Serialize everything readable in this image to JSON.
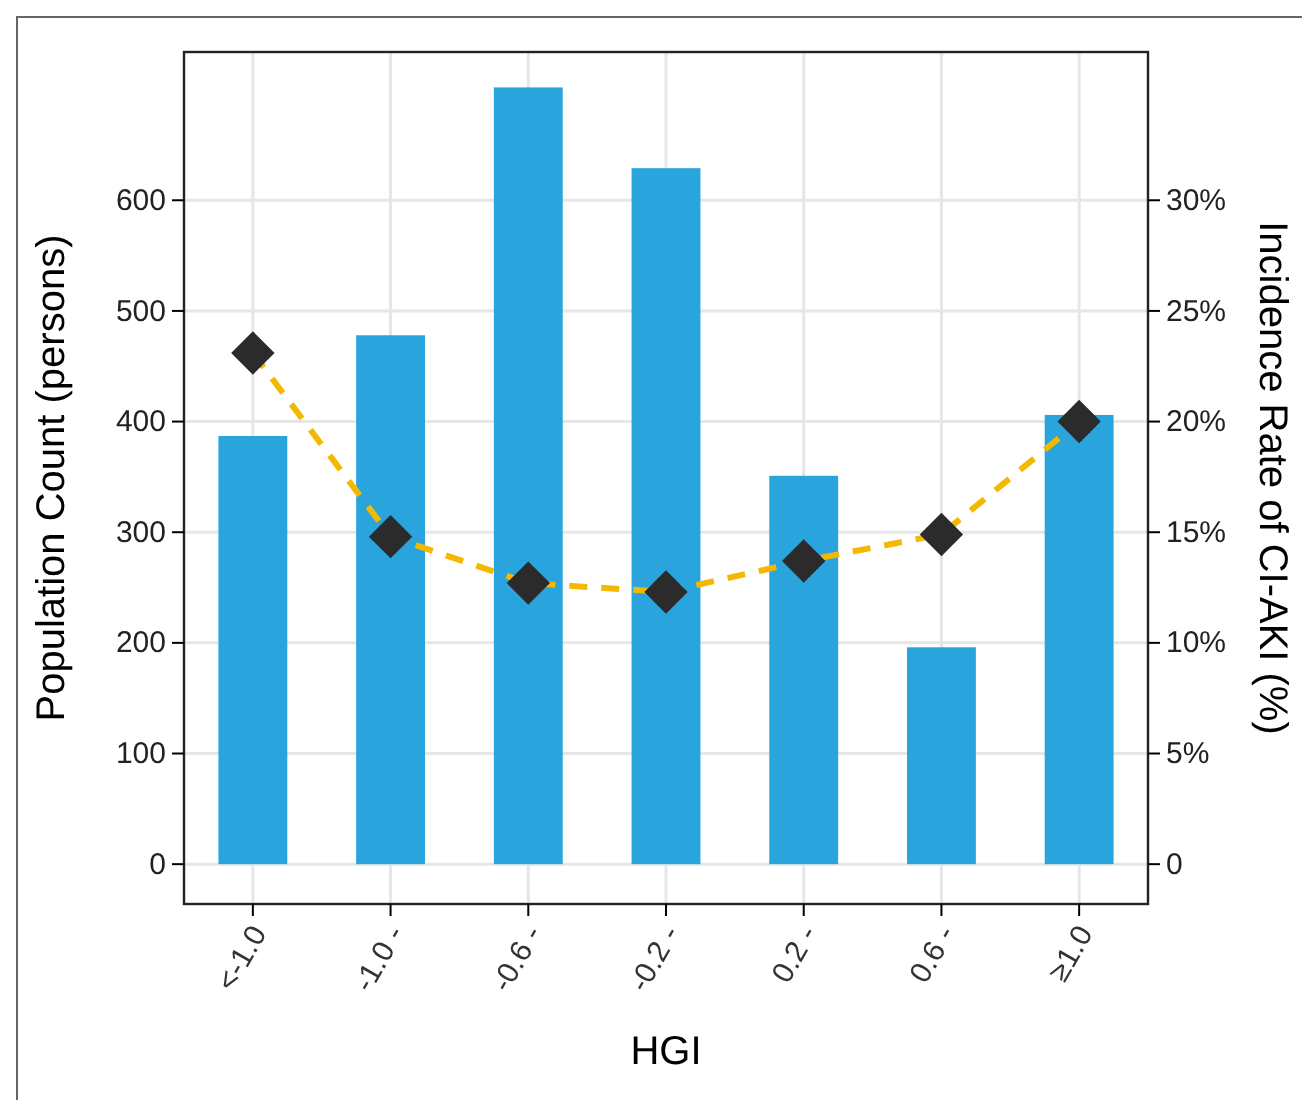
{
  "chart_data": {
    "type": "bar",
    "xlabel": "HGI",
    "ylabel": "Population Count (persons)",
    "y2label": "Incidence Rate of CI-AKI (%)",
    "categories": [
      "<-1.0",
      "-1.0 -",
      "-0.6 -",
      "-0.2 -",
      "0.2 -",
      "0.6 -",
      "≥1.0"
    ],
    "series": [
      {
        "color": "#2aa4dc",
        "values": [
          387,
          478,
          702,
          629,
          351,
          196,
          406
        ]
      },
      {
        "type": "line",
        "axis": "y2",
        "color": "#f5b800",
        "marker": "diamond",
        "line_style": "dashed",
        "values": [
          23.1,
          14.8,
          12.7,
          12.3,
          13.7,
          14.9,
          20.0
        ]
      }
    ],
    "ylim": [
      -36,
      734
    ],
    "yticks": [
      0,
      100,
      200,
      300,
      400,
      500,
      600
    ],
    "y2lim": [
      -1.8,
      36.7
    ],
    "y2ticks": [
      {
        "value": 0,
        "label": "0"
      },
      {
        "value": 5,
        "label": "5%"
      },
      {
        "value": 10,
        "label": "10%"
      },
      {
        "value": 15,
        "label": "15%"
      },
      {
        "value": 20,
        "label": "20%"
      },
      {
        "value": 25,
        "label": "25%"
      },
      {
        "value": 30,
        "label": "30%"
      }
    ],
    "grid": true
  }
}
